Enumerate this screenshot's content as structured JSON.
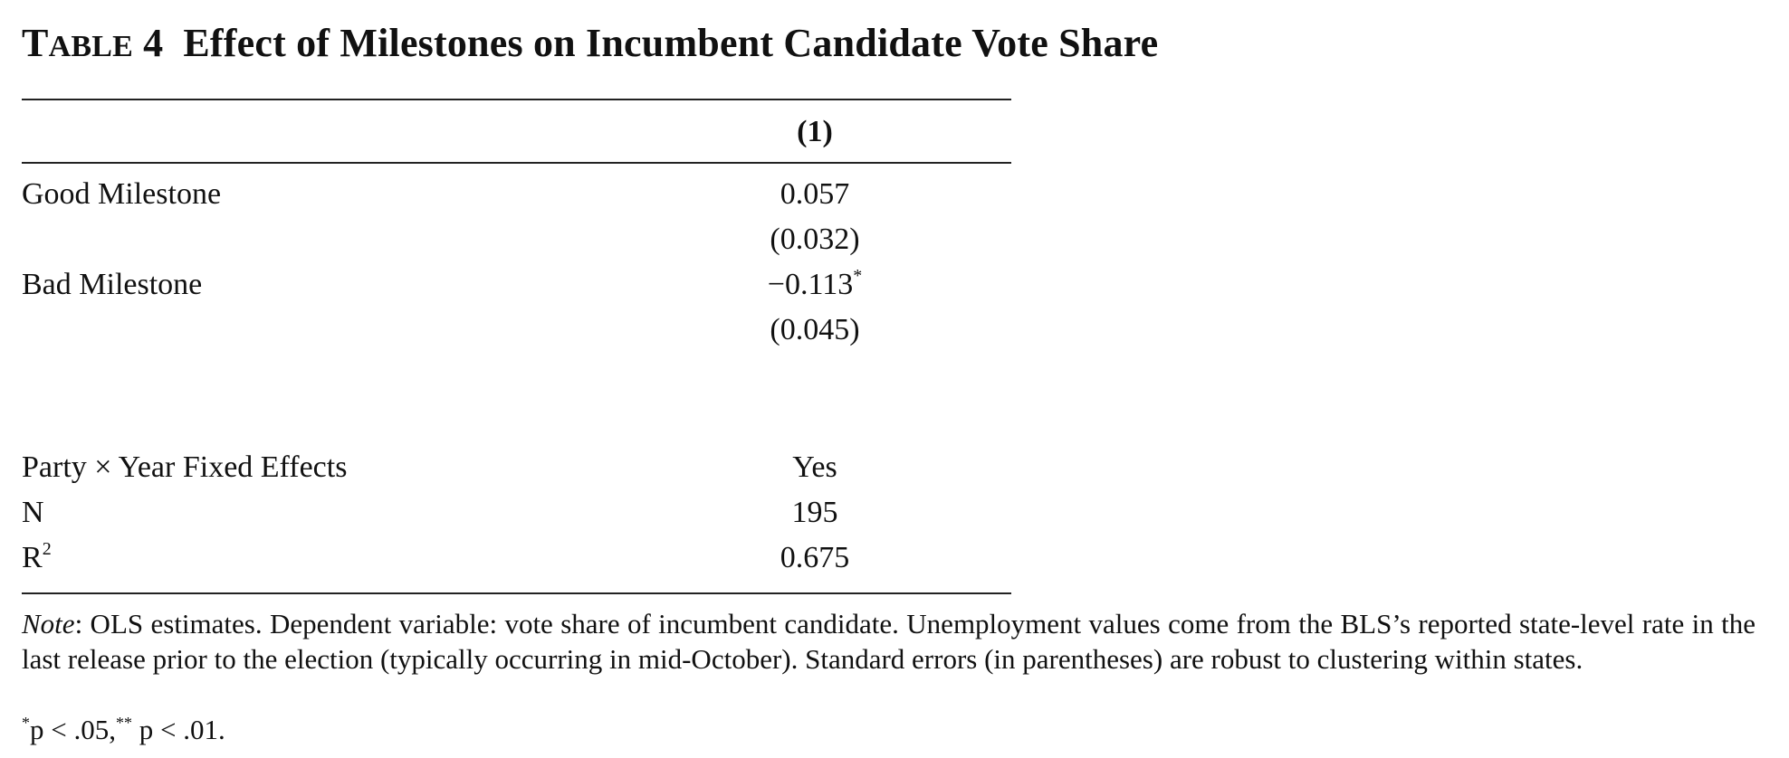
{
  "table": {
    "number_prefix_big": "T",
    "number_prefix_small": "ABLE",
    "number": "4",
    "title": "Effect of Milestones on Incumbent Candidate Vote Share",
    "column_header": "(1)",
    "rows": [
      {
        "label": "Good Milestone",
        "estimate": "0.057",
        "stars": "",
        "se": "(0.032)"
      },
      {
        "label": "Bad Milestone",
        "estimate": "−0.113",
        "stars": "*",
        "se": "(0.045)"
      }
    ],
    "stats": [
      {
        "label": "Party × Year Fixed Effects",
        "value": "Yes"
      },
      {
        "label": "N",
        "value": "195"
      },
      {
        "label": "R",
        "label_sup": "2",
        "value": "0.675"
      }
    ],
    "note_label": "Note",
    "note_text": ": OLS estimates. Dependent variable: vote share of incumbent candidate. Unemployment values come from the BLS’s reported state-level rate in the last release prior to the election (typically occurring in mid-October). Standard errors (in parentheses) are robust to clustering within states.",
    "sig_star1": "*",
    "sig_text1": "p < .05,",
    "sig_star2": "**",
    "sig_text2": "p < .01."
  }
}
